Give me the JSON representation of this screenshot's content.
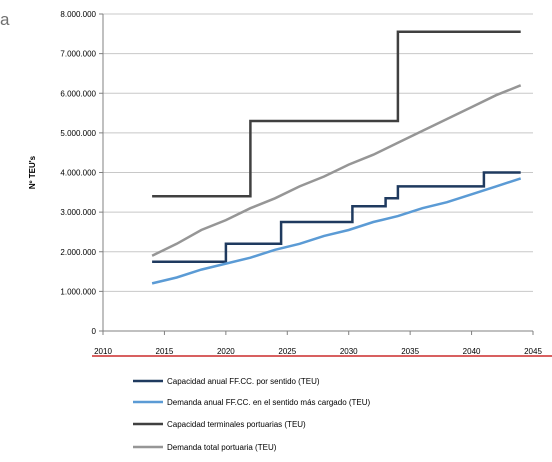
{
  "fragment_text": "a",
  "colors": {
    "background": "#ffffff",
    "axis": "#808080",
    "grid": "#c8c8c8",
    "separator": "#c00000"
  },
  "chart_data": {
    "type": "line",
    "title": "",
    "xlabel": "",
    "ylabel": "Nº TEU's",
    "xlim": [
      2010,
      2045
    ],
    "ylim": [
      0,
      8000000
    ],
    "x_ticks": [
      2010,
      2015,
      2020,
      2025,
      2030,
      2035,
      2040,
      2045
    ],
    "x_tick_labels": [
      "2010",
      "2015",
      "2020",
      "2025",
      "2030",
      "2035",
      "2040",
      "2045"
    ],
    "y_ticks": [
      0,
      1000000,
      2000000,
      3000000,
      4000000,
      5000000,
      6000000,
      7000000,
      8000000
    ],
    "y_tick_labels": [
      "0",
      "1.000.000",
      "2.000.000",
      "3.000.000",
      "4.000.000",
      "5.000.000",
      "6.000.000",
      "7.000.000",
      "8.000.000"
    ],
    "grid": "horizontal",
    "legend_position": "bottom",
    "series": [
      {
        "name": "Capacidad anual FF.CC. por sentido (TEU)",
        "color": "#1f3a5f",
        "step": true,
        "x": [
          2014,
          2020,
          2020,
          2024.5,
          2024.5,
          2030.3,
          2030.3,
          2033,
          2033,
          2034,
          2034,
          2041,
          2041,
          2044
        ],
        "y": [
          1750000,
          1750000,
          2200000,
          2200000,
          2750000,
          2750000,
          3150000,
          3150000,
          3350000,
          3350000,
          3650000,
          3650000,
          4000000,
          4000000
        ]
      },
      {
        "name": "Demanda anual FF.CC. en el sentido más cargado (TEU)",
        "color": "#5b9bd5",
        "step": false,
        "x": [
          2014,
          2016,
          2018,
          2020,
          2022,
          2024,
          2026,
          2028,
          2030,
          2032,
          2034,
          2036,
          2038,
          2040,
          2042,
          2044
        ],
        "y": [
          1200000,
          1350000,
          1550000,
          1700000,
          1850000,
          2050000,
          2200000,
          2400000,
          2550000,
          2750000,
          2900000,
          3100000,
          3250000,
          3450000,
          3650000,
          3850000
        ]
      },
      {
        "name": "Capacidad terminales portuarias (TEU)",
        "color": "#404040",
        "step": true,
        "x": [
          2014,
          2022,
          2022,
          2034,
          2034,
          2044
        ],
        "y": [
          3400000,
          3400000,
          5300000,
          5300000,
          7550000,
          7550000
        ]
      },
      {
        "name": "Demanda total portuaria (TEU)",
        "color": "#969696",
        "step": false,
        "x": [
          2014,
          2016,
          2018,
          2020,
          2022,
          2024,
          2026,
          2028,
          2030,
          2032,
          2034,
          2036,
          2038,
          2040,
          2042,
          2044
        ],
        "y": [
          1900000,
          2200000,
          2550000,
          2800000,
          3100000,
          3350000,
          3650000,
          3900000,
          4200000,
          4450000,
          4750000,
          5050000,
          5350000,
          5650000,
          5950000,
          6200000
        ]
      }
    ]
  }
}
